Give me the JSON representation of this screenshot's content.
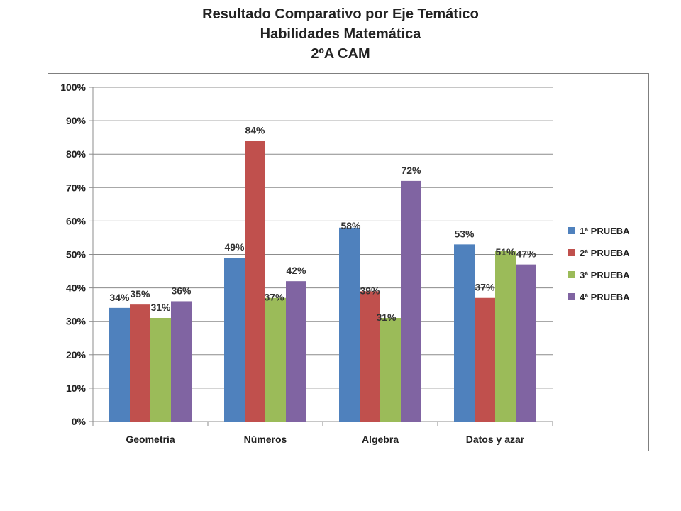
{
  "chart_data": {
    "type": "bar",
    "title": [
      "Resultado Comparativo por Eje Temático",
      "Habilidades Matemática",
      "2ºA CAM"
    ],
    "categories": [
      "Geometría",
      "Números",
      "Algebra",
      "Datos y azar"
    ],
    "series": [
      {
        "name": "1ª PRUEBA",
        "color": "#4f81bd",
        "values": [
          34,
          49,
          58,
          53
        ]
      },
      {
        "name": "2ª PRUEBA",
        "color": "#c0504d",
        "values": [
          35,
          84,
          39,
          37
        ]
      },
      {
        "name": "3ª PRUEBA",
        "color": "#9bbb59",
        "values": [
          31,
          37,
          31,
          51
        ]
      },
      {
        "name": "4ª PRUEBA",
        "color": "#8064a2",
        "values": [
          36,
          42,
          72,
          47
        ]
      }
    ],
    "ylim": [
      0,
      100
    ],
    "yticks": [
      "0%",
      "10%",
      "20%",
      "30%",
      "40%",
      "50%",
      "60%",
      "70%",
      "80%",
      "90%",
      "100%"
    ],
    "value_suffix": "%",
    "grid": true,
    "legend_position": "right"
  }
}
